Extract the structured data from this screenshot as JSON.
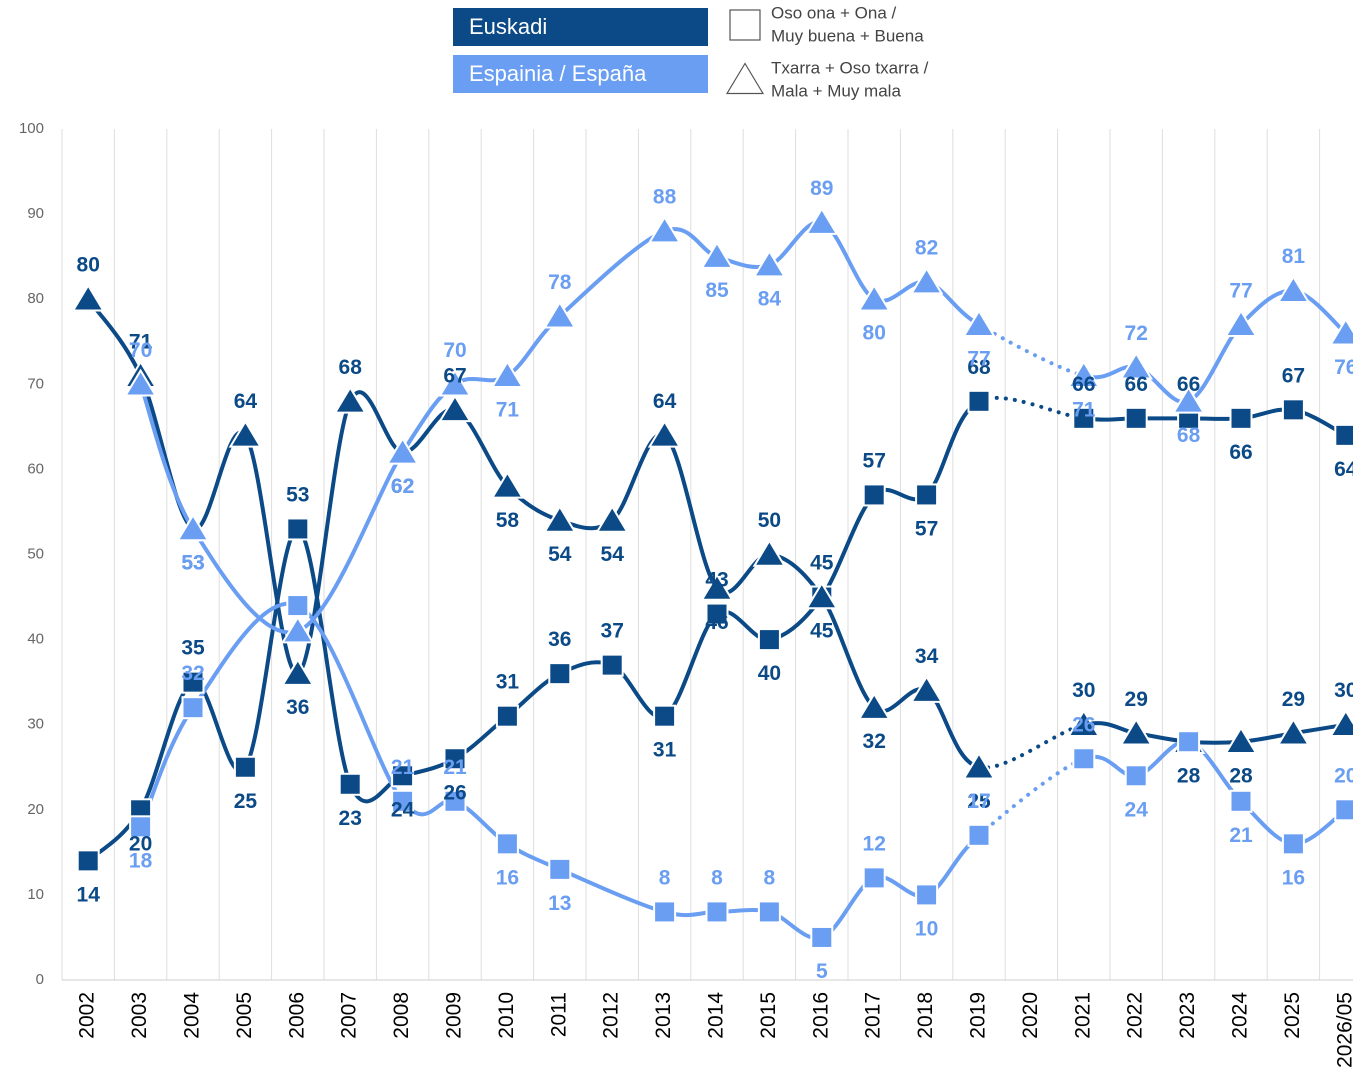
{
  "chart_data": {
    "type": "line",
    "categories": [
      "2002",
      "2003",
      "2004",
      "2005",
      "2006",
      "2007",
      "2008",
      "2009",
      "2010",
      "2011",
      "2012",
      "2013",
      "2014",
      "2015",
      "2016",
      "2017",
      "2018",
      "2019",
      "2020",
      "2021",
      "2022",
      "2023",
      "2024",
      "2025",
      "2026/05"
    ],
    "ylim": [
      0,
      100
    ],
    "yticks": [
      0,
      10,
      20,
      30,
      40,
      50,
      60,
      70,
      80,
      90,
      100
    ],
    "markers": [
      {
        "marker": "square",
        "label": [
          "Oso ona + Ona /",
          "Muy buena + Buena"
        ]
      },
      {
        "marker": "triangle",
        "label": [
          "Txarra + Oso txarra /",
          "Mala + Muy mala"
        ]
      }
    ],
    "groups": [
      {
        "name": "Euskadi",
        "color": "#0b4a86",
        "series": [
          {
            "marker": "square",
            "values": [
              14,
              20,
              35,
              25,
              53,
              23,
              24,
              26,
              31,
              36,
              37,
              31,
              43,
              40,
              45,
              57,
              57,
              68,
              null,
              66,
              66,
              66,
              66,
              67,
              64
            ]
          },
          {
            "marker": "triangle",
            "values": [
              80,
              71,
              53,
              64,
              36,
              68,
              62,
              67,
              58,
              54,
              54,
              64,
              46,
              50,
              45,
              32,
              34,
              25,
              null,
              30,
              29,
              28,
              28,
              29,
              30
            ]
          }
        ]
      },
      {
        "name": "Espainia / España",
        "color": "#6a9ef2",
        "series": [
          {
            "marker": "square",
            "values": [
              null,
              18,
              32,
              null,
              44,
              null,
              21,
              21,
              16,
              13,
              null,
              8,
              8,
              8,
              5,
              12,
              10,
              17,
              null,
              26,
              24,
              28,
              21,
              16,
              20
            ],
            "value_labels": [
              null,
              "18",
              "32",
              null,
              null,
              null,
              "21",
              "21",
              "16",
              "13",
              null,
              "8",
              "8",
              "8",
              "5",
              "12",
              "10",
              "17",
              null,
              "26",
              "24",
              null,
              "21",
              "16",
              "20"
            ]
          },
          {
            "marker": "triangle",
            "values": [
              null,
              70,
              53,
              null,
              41,
              null,
              62,
              70,
              71,
              78,
              null,
              88,
              85,
              84,
              89,
              80,
              82,
              77,
              null,
              71,
              72,
              68,
              77,
              81,
              76
            ],
            "value_labels": [
              null,
              "70",
              "53",
              null,
              null,
              null,
              "62",
              "70",
              "71",
              "78",
              null,
              "88",
              "85",
              "84",
              "89",
              "80",
              "82",
              "77",
              null,
              "71",
              "72",
              "68",
              "77",
              "81",
              "76"
            ]
          }
        ]
      }
    ]
  }
}
